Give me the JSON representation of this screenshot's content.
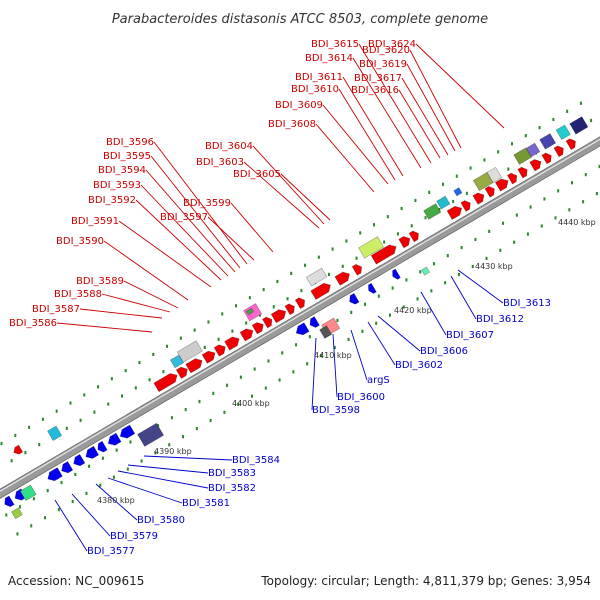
{
  "title": "Parabacteroides distasonis ATCC 8503, complete genome",
  "footer": {
    "accession": "Accession: NC_009615",
    "summary": "Topology: circular; Length: 4,811,379 bp; Genes: 3,954"
  },
  "ticks": [
    {
      "label": "4380 kbp"
    },
    {
      "label": "4390 kbp"
    },
    {
      "label": "4400 kbp"
    },
    {
      "label": "4410 kbp"
    },
    {
      "label": "4420 kbp"
    },
    {
      "label": "4430 kbp"
    },
    {
      "label": "4440 kbp"
    }
  ],
  "top_labels": [
    "BDI_3586",
    "BDI_3587",
    "BDI_3588",
    "BDI_3589",
    "BDI_3590",
    "BDI_3591",
    "BDI_3592",
    "BDI_3593",
    "BDI_3594",
    "BDI_3595",
    "BDI_3596",
    "BDI_3597",
    "BDI_3599",
    "BDI_3603",
    "BDI_3604",
    "BDI_3605",
    "BDI_3608",
    "BDI_3609",
    "BDI_3610",
    "BDI_3611",
    "BDI_3614",
    "BDI_3615",
    "BDI_3616",
    "BDI_3617",
    "BDI_3619",
    "BDI_3620",
    "BDI_3624"
  ],
  "bottom_labels": [
    "BDI_3577",
    "BDI_3579",
    "BDI_3580",
    "BDI_3581",
    "BDI_3582",
    "BDI_3583",
    "BDI_3584",
    "BDI_3598",
    "BDI_3600",
    "argS",
    "BDI_3602",
    "BDI_3606",
    "BDI_3607",
    "BDI_3612",
    "BDI_3613"
  ],
  "colors": {
    "forward": "#ee0000",
    "reverse": "#0000ee",
    "top_label": "#cc0000",
    "bottom_label": "#0000cc",
    "backbone": "#8a8a8a",
    "tick_dot": "#2a8a2a"
  }
}
